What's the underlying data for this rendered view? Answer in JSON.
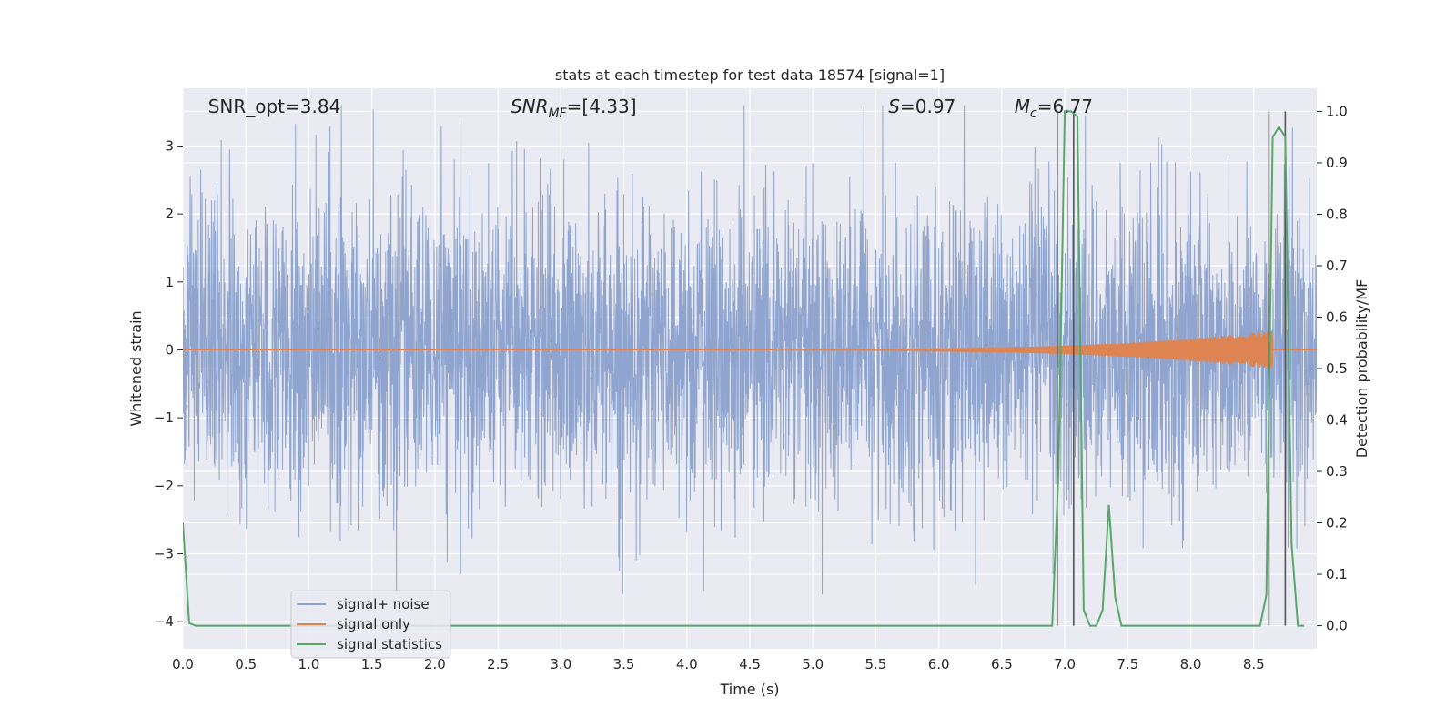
{
  "chart_data": {
    "type": "line",
    "title": "stats at each timestep for test data 18574 [signal=1]",
    "xlabel": "Time (s)",
    "ylabel": "Whitened strain",
    "ylabel_right": "Detection probability/MF",
    "xlim": [
      0.0,
      9.0
    ],
    "ylim": [
      -4.4,
      3.85
    ],
    "ylim_right": [
      -0.045,
      1.045
    ],
    "x_ticks": [
      0.0,
      0.5,
      1.0,
      1.5,
      2.0,
      2.5,
      3.0,
      3.5,
      4.0,
      4.5,
      5.0,
      5.5,
      6.0,
      6.5,
      7.0,
      7.5,
      8.0,
      8.5
    ],
    "x_tick_labels": [
      "0.0",
      "0.5",
      "1.0",
      "1.5",
      "2.0",
      "2.5",
      "3.0",
      "3.5",
      "4.0",
      "4.5",
      "5.0",
      "5.5",
      "6.0",
      "6.5",
      "7.0",
      "7.5",
      "8.0",
      "8.5"
    ],
    "y_ticks": [
      -4,
      -3,
      -2,
      -1,
      0,
      1,
      2,
      3
    ],
    "y_tick_labels": [
      "−4",
      "−3",
      "−2",
      "−1",
      "0",
      "1",
      "2",
      "3"
    ],
    "y_right_ticks": [
      0.0,
      0.1,
      0.2,
      0.3,
      0.4,
      0.5,
      0.6,
      0.7,
      0.8,
      0.9,
      1.0
    ],
    "y_right_tick_labels": [
      "0.0",
      "0.1",
      "0.2",
      "0.3",
      "0.4",
      "0.5",
      "0.6",
      "0.7",
      "0.8",
      "0.9",
      "1.0"
    ],
    "grid": true,
    "legend_position": "lower-left",
    "annotations": [
      {
        "text": "SNR_opt=3.84",
        "x": 0.2
      },
      {
        "text": "SNRₘF=[4.33]",
        "x": 2.6,
        "math": "snr_mf",
        "main": "SNR",
        "sub": "MF",
        "rest": "=[4.33]"
      },
      {
        "text": "S=0.97",
        "x": 5.6,
        "math": "italic",
        "main": "S",
        "rest": "=0.97"
      },
      {
        "text": "Mᴄ=6.77",
        "x": 6.6,
        "math": "sub",
        "main": "M",
        "sub": "c",
        "rest": "=6.77"
      }
    ],
    "series": [
      {
        "name": "signal+ noise",
        "color": "#8fa5cf",
        "kind": "noise",
        "duration": 9.0,
        "std": 1.1,
        "max": 3.6,
        "min": -3.6
      },
      {
        "name": "signal only",
        "color": "#dd8452",
        "kind": "chirp",
        "start": 4.7,
        "end": 8.65,
        "amp_start": 0.01,
        "amp_end": 0.28
      },
      {
        "name": "signal statistics",
        "color": "#55a868",
        "x": [
          0.0,
          0.05,
          0.1,
          0.5,
          1.0,
          2.0,
          3.0,
          4.0,
          5.0,
          6.0,
          6.9,
          6.95,
          7.0,
          7.05,
          7.1,
          7.15,
          7.2,
          7.25,
          7.3,
          7.35,
          7.4,
          7.45,
          7.5,
          7.6,
          8.0,
          8.55,
          8.6,
          8.65,
          8.7,
          8.75,
          8.8,
          8.85,
          8.9
        ],
        "y": [
          0.2,
          0.005,
          0.0,
          0.0,
          0.0,
          0.0,
          0.0,
          0.0,
          0.0,
          0.0,
          0.0,
          0.3,
          1.0,
          1.0,
          0.99,
          0.03,
          0.0,
          0.0,
          0.03,
          0.235,
          0.055,
          0.0,
          0.0,
          0.0,
          0.0,
          0.0,
          0.06,
          0.95,
          0.97,
          0.95,
          0.16,
          0.0,
          0.0
        ]
      }
    ],
    "vlines": [
      6.94,
      7.07,
      8.62,
      8.75
    ],
    "vline_color": "#555555"
  }
}
